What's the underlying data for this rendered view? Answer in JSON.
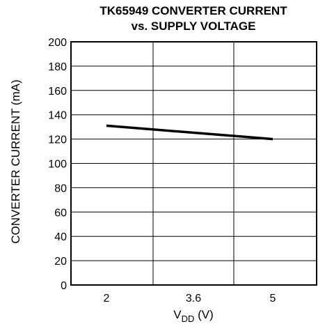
{
  "chart_data": {
    "type": "line",
    "title": "TK65949 CONVERTER CURRENT",
    "subtitle": "vs. SUPPLY VOLTAGE",
    "xlabel": {
      "main": "V",
      "subscript": "DD",
      "unit": " (V)"
    },
    "ylabel": "CONVERTER CURRENT (mA)",
    "x_ticks": [
      "2",
      "3.6",
      "5"
    ],
    "y_ticks": [
      "0",
      "20",
      "40",
      "60",
      "80",
      "100",
      "120",
      "140",
      "160",
      "180",
      "200"
    ],
    "xlim": [
      1,
      6
    ],
    "ylim": [
      0,
      200
    ],
    "grid": true,
    "series": [
      {
        "x": [
          2,
          5
        ],
        "y": [
          131,
          120
        ]
      }
    ]
  }
}
